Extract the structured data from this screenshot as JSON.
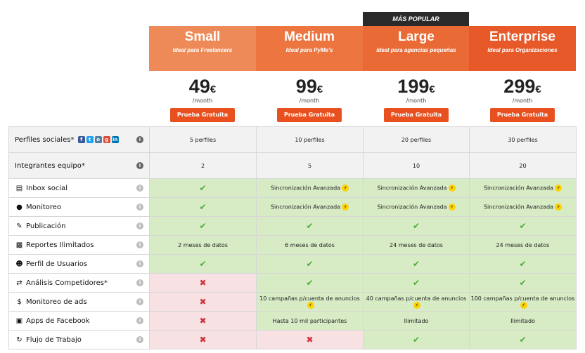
{
  "badge": "MÁS POPULAR",
  "plans": [
    {
      "name": "Small",
      "tagline": "Ideal para Freelancers",
      "price": "49",
      "currency": "€",
      "period": "/month",
      "button": "Prueba Gratuita",
      "color": "#ee8a57"
    },
    {
      "name": "Medium",
      "tagline": "Ideal para PyMe's",
      "price": "99",
      "currency": "€",
      "period": "/month",
      "button": "Prueba Gratuita",
      "color": "#ec7540"
    },
    {
      "name": "Large",
      "tagline": "Ideal para agencias pequeñas",
      "price": "199",
      "currency": "€",
      "period": "/month",
      "button": "Prueba Gratuita",
      "color": "#ea6a35"
    },
    {
      "name": "Enterprise",
      "tagline": "Ideal para Organizaciones",
      "price": "299",
      "currency": "€",
      "period": "/month",
      "button": "Prueba Gratuita",
      "color": "#e8592a"
    }
  ],
  "rows": [
    {
      "label": "Perfiles sociales*",
      "icon": "social-icons",
      "style": "gray",
      "cells": [
        {
          "text": "5 perfiles",
          "bg": "gray"
        },
        {
          "text": "10 perfiles",
          "bg": "gray"
        },
        {
          "text": "20 perfiles",
          "bg": "gray"
        },
        {
          "text": "30 perfiles",
          "bg": "gray"
        }
      ]
    },
    {
      "label": "Integrantes equipo*",
      "icon": "",
      "style": "gray",
      "cells": [
        {
          "text": "2",
          "bg": "gray"
        },
        {
          "text": "5",
          "bg": "gray"
        },
        {
          "text": "10",
          "bg": "gray"
        },
        {
          "text": "20",
          "bg": "gray"
        }
      ]
    },
    {
      "label": "Inbox social",
      "icon": "inbox-icon",
      "style": "normal",
      "cells": [
        {
          "type": "check",
          "bg": "green"
        },
        {
          "text": "Sincronización Avanzada",
          "bolt": true,
          "bg": "green"
        },
        {
          "text": "Sincronización Avanzada",
          "bolt": true,
          "bg": "green"
        },
        {
          "text": "Sincronización Avanzada",
          "bolt": true,
          "bg": "green"
        }
      ]
    },
    {
      "label": "Monitoreo",
      "icon": "globe-icon",
      "style": "normal",
      "cells": [
        {
          "type": "check",
          "bg": "green"
        },
        {
          "text": "Sincronización Avanzada",
          "bolt": true,
          "bg": "green"
        },
        {
          "text": "Sincronización Avanzada",
          "bolt": true,
          "bg": "green"
        },
        {
          "text": "Sincronización Avanzada",
          "bolt": true,
          "bg": "green"
        }
      ]
    },
    {
      "label": "Publicación",
      "icon": "pencil-icon",
      "style": "normal",
      "cells": [
        {
          "type": "check",
          "bg": "green"
        },
        {
          "type": "check",
          "bg": "green"
        },
        {
          "type": "check",
          "bg": "green"
        },
        {
          "type": "check",
          "bg": "green"
        }
      ]
    },
    {
      "label": "Reportes Ilimitados",
      "icon": "bar-chart-icon",
      "style": "normal",
      "cells": [
        {
          "text": "2 meses de datos",
          "bg": "green"
        },
        {
          "text": "6 meses de datos",
          "bg": "green"
        },
        {
          "text": "24 meses de datos",
          "bg": "green"
        },
        {
          "text": "24 meses de datos",
          "bg": "green"
        }
      ]
    },
    {
      "label": "Perfil de Usuarios",
      "icon": "users-icon",
      "style": "normal",
      "cells": [
        {
          "type": "check",
          "bg": "green"
        },
        {
          "type": "check",
          "bg": "green"
        },
        {
          "type": "check",
          "bg": "green"
        },
        {
          "type": "check",
          "bg": "green"
        }
      ]
    },
    {
      "label": "Análisis Competidores*",
      "icon": "exchange-icon",
      "style": "normal",
      "cells": [
        {
          "type": "cross",
          "bg": "red"
        },
        {
          "type": "check",
          "bg": "green"
        },
        {
          "type": "check",
          "bg": "green"
        },
        {
          "type": "check",
          "bg": "green"
        }
      ]
    },
    {
      "label": "Monitoreo de ads",
      "icon": "dollar-icon",
      "style": "normal",
      "cells": [
        {
          "type": "cross",
          "bg": "red"
        },
        {
          "text": "10 campañas p/cuenta de anuncios",
          "bolt": true,
          "bg": "green"
        },
        {
          "text": "40 campañas p/cuenta de anuncios",
          "bolt": true,
          "bg": "green"
        },
        {
          "text": "100 campañas p/cuenta de anuncios",
          "bolt": true,
          "bg": "green"
        }
      ]
    },
    {
      "label": "Apps de Facebook",
      "icon": "gift-icon",
      "style": "normal",
      "cells": [
        {
          "type": "cross",
          "bg": "red"
        },
        {
          "text": "Hasta 10 mil participantes",
          "bg": "green"
        },
        {
          "text": "Ilimitado",
          "bg": "green"
        },
        {
          "text": "Ilimitado",
          "bg": "green"
        }
      ]
    },
    {
      "label": "Flujo de Trabajo",
      "icon": "refresh-icon",
      "style": "normal",
      "cells": [
        {
          "type": "cross",
          "bg": "red"
        },
        {
          "type": "cross",
          "bg": "red"
        },
        {
          "type": "check",
          "bg": "green"
        },
        {
          "type": "check",
          "bg": "green"
        }
      ]
    }
  ]
}
